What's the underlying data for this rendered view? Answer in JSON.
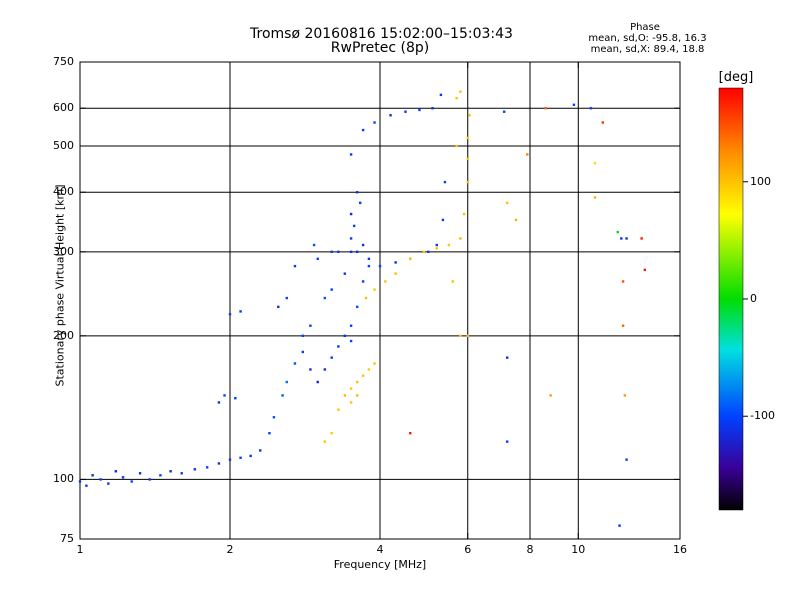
{
  "title": {
    "line1": "Tromsø 20160816 15:02:00–15:03:43",
    "line2": "RwPretec (8p)"
  },
  "phase_box": {
    "title": "Phase",
    "o_line": "mean, sd,O: -95.8, 16.3",
    "x_line": "mean, sd,X: 89.4, 18.8"
  },
  "colorbar": {
    "unit": "[deg]",
    "range": [
      -180,
      180
    ],
    "ticks": [
      "100",
      "0",
      "-100"
    ],
    "tick_values": [
      100,
      0,
      -100
    ]
  },
  "chart_data": {
    "type": "scatter",
    "xlabel": "Frequency [MHz]",
    "ylabel": "Stationary phase Virtual Height [km]",
    "xscale": "log",
    "yscale": "log",
    "xlim": [
      1,
      16
    ],
    "ylim": [
      75,
      750
    ],
    "xticks": [
      "1",
      "2",
      "4",
      "6",
      "8",
      "10",
      "16"
    ],
    "xtick_values": [
      1,
      2,
      4,
      6,
      8,
      10,
      16
    ],
    "xgrid": [
      2,
      4,
      6,
      8,
      10
    ],
    "yticks": [
      "75",
      "100",
      "200",
      "300",
      "400",
      "500",
      "600",
      "750"
    ],
    "ytick_values": [
      75,
      100,
      200,
      300,
      400,
      500,
      600,
      750
    ],
    "ygrid": [
      100,
      200,
      300,
      400,
      500,
      600
    ],
    "grid": true,
    "colormap": "rainbow (phase, deg)",
    "series": [
      {
        "mode": "O",
        "points": [
          [
            1.0,
            99,
            -110
          ],
          [
            1.03,
            97,
            -105
          ],
          [
            1.06,
            102,
            -115
          ],
          [
            1.1,
            100,
            -100
          ],
          [
            1.14,
            98,
            -110
          ],
          [
            1.18,
            104,
            -120
          ],
          [
            1.22,
            101,
            -105
          ],
          [
            1.27,
            99,
            -98
          ],
          [
            1.32,
            103,
            -112
          ],
          [
            1.38,
            100,
            -108
          ],
          [
            1.45,
            102,
            -100
          ],
          [
            1.52,
            104,
            -115
          ],
          [
            1.6,
            103,
            -105
          ],
          [
            1.7,
            105,
            -110
          ],
          [
            1.8,
            106,
            -100
          ],
          [
            1.9,
            108,
            -112
          ],
          [
            2.0,
            110,
            -105
          ],
          [
            2.1,
            111,
            -100
          ],
          [
            2.2,
            112,
            -108
          ],
          [
            2.3,
            115,
            -110
          ],
          [
            2.4,
            125,
            -100
          ],
          [
            2.45,
            135,
            -95
          ],
          [
            2.55,
            150,
            -90
          ],
          [
            2.6,
            160,
            -85
          ],
          [
            2.7,
            175,
            -95
          ],
          [
            2.8,
            185,
            -105
          ],
          [
            2.9,
            170,
            -110
          ],
          [
            3.0,
            160,
            -120
          ],
          [
            3.1,
            170,
            -115
          ],
          [
            3.2,
            180,
            -105
          ],
          [
            3.3,
            190,
            -110
          ],
          [
            3.5,
            210,
            -100
          ],
          [
            3.6,
            230,
            -95
          ],
          [
            3.7,
            260,
            -105
          ],
          [
            3.8,
            280,
            -100
          ],
          [
            3.6,
            300,
            -110
          ],
          [
            3.5,
            320,
            -105
          ],
          [
            3.5,
            360,
            -115
          ],
          [
            3.6,
            400,
            -110
          ],
          [
            3.55,
            340,
            -100
          ],
          [
            3.65,
            380,
            -105
          ],
          [
            3.7,
            310,
            -112
          ],
          [
            3.4,
            270,
            -108
          ],
          [
            3.2,
            250,
            -100
          ],
          [
            3.1,
            240,
            -95
          ],
          [
            3.3,
            300,
            -110
          ],
          [
            3.5,
            480,
            -100
          ],
          [
            3.7,
            540,
            -105
          ],
          [
            3.9,
            560,
            -100
          ],
          [
            4.2,
            580,
            -110
          ],
          [
            4.5,
            590,
            -105
          ],
          [
            4.8,
            595,
            -100
          ],
          [
            5.1,
            600,
            -110
          ],
          [
            5.3,
            640,
            -105
          ],
          [
            5.4,
            420,
            -100
          ],
          [
            5.35,
            350,
            -105
          ],
          [
            5.2,
            310,
            -110
          ],
          [
            5.0,
            300,
            -100
          ],
          [
            4.6,
            290,
            -105
          ],
          [
            4.3,
            285,
            -110
          ],
          [
            4.0,
            280,
            -100
          ],
          [
            3.8,
            290,
            -105
          ],
          [
            3.5,
            300,
            -112
          ],
          [
            3.2,
            300,
            -108
          ],
          [
            3.0,
            290,
            -100
          ],
          [
            2.95,
            310,
            -95
          ],
          [
            2.7,
            280,
            -105
          ],
          [
            2.6,
            240,
            -100
          ],
          [
            2.5,
            230,
            -110
          ],
          [
            2.1,
            225,
            -105
          ],
          [
            2.0,
            222,
            -100
          ],
          [
            1.95,
            150,
            -100
          ],
          [
            2.05,
            148,
            -105
          ],
          [
            1.9,
            145,
            -110
          ],
          [
            2.8,
            200,
            -100
          ],
          [
            2.9,
            210,
            -105
          ],
          [
            3.4,
            200,
            -110
          ],
          [
            3.5,
            195,
            -100
          ]
        ]
      },
      {
        "mode": "X",
        "points": [
          [
            3.1,
            120,
            100
          ],
          [
            3.2,
            125,
            95
          ],
          [
            3.3,
            140,
            100
          ],
          [
            3.4,
            150,
            105
          ],
          [
            3.5,
            155,
            98
          ],
          [
            3.6,
            160,
            102
          ],
          [
            3.7,
            165,
            100
          ],
          [
            3.8,
            170,
            95
          ],
          [
            3.9,
            175,
            100
          ],
          [
            3.6,
            150,
            105
          ],
          [
            3.5,
            145,
            100
          ],
          [
            3.75,
            240,
            100
          ],
          [
            3.9,
            250,
            98
          ],
          [
            4.1,
            260,
            100
          ],
          [
            4.3,
            270,
            102
          ],
          [
            4.6,
            290,
            100
          ],
          [
            4.9,
            300,
            98
          ],
          [
            5.2,
            305,
            100
          ],
          [
            5.5,
            310,
            100
          ],
          [
            5.8,
            320,
            105
          ],
          [
            5.9,
            360,
            100
          ],
          [
            6.0,
            420,
            100
          ],
          [
            6.0,
            470,
            102
          ],
          [
            6.0,
            520,
            98
          ],
          [
            6.05,
            580,
            100
          ],
          [
            5.7,
            630,
            100
          ],
          [
            5.8,
            650,
            102
          ],
          [
            5.6,
            260,
            100
          ],
          [
            5.8,
            200,
            95
          ]
        ]
      },
      {
        "mode": "noise",
        "points": [
          [
            7.1,
            590,
            -100
          ],
          [
            7.2,
            380,
            100
          ],
          [
            7.2,
            180,
            -110
          ],
          [
            7.2,
            120,
            -100
          ],
          [
            7.5,
            350,
            110
          ],
          [
            7.9,
            480,
            130
          ],
          [
            8.6,
            600,
            140
          ],
          [
            8.8,
            150,
            120
          ],
          [
            9.8,
            610,
            -100
          ],
          [
            10.6,
            600,
            -100
          ],
          [
            10.8,
            390,
            110
          ],
          [
            10.8,
            460,
            90
          ],
          [
            11.2,
            560,
            160
          ],
          [
            12.0,
            330,
            -5
          ],
          [
            12.2,
            320,
            -110
          ],
          [
            12.3,
            260,
            150
          ],
          [
            12.3,
            210,
            140
          ],
          [
            12.4,
            150,
            120
          ],
          [
            12.5,
            320,
            -110
          ],
          [
            12.5,
            110,
            -100
          ],
          [
            12.1,
            80,
            -110
          ],
          [
            13.4,
            320,
            170
          ],
          [
            13.6,
            275,
            170
          ],
          [
            4.6,
            125,
            170
          ],
          [
            5.7,
            500,
            100
          ],
          [
            6.0,
            200,
            100
          ]
        ]
      }
    ]
  }
}
